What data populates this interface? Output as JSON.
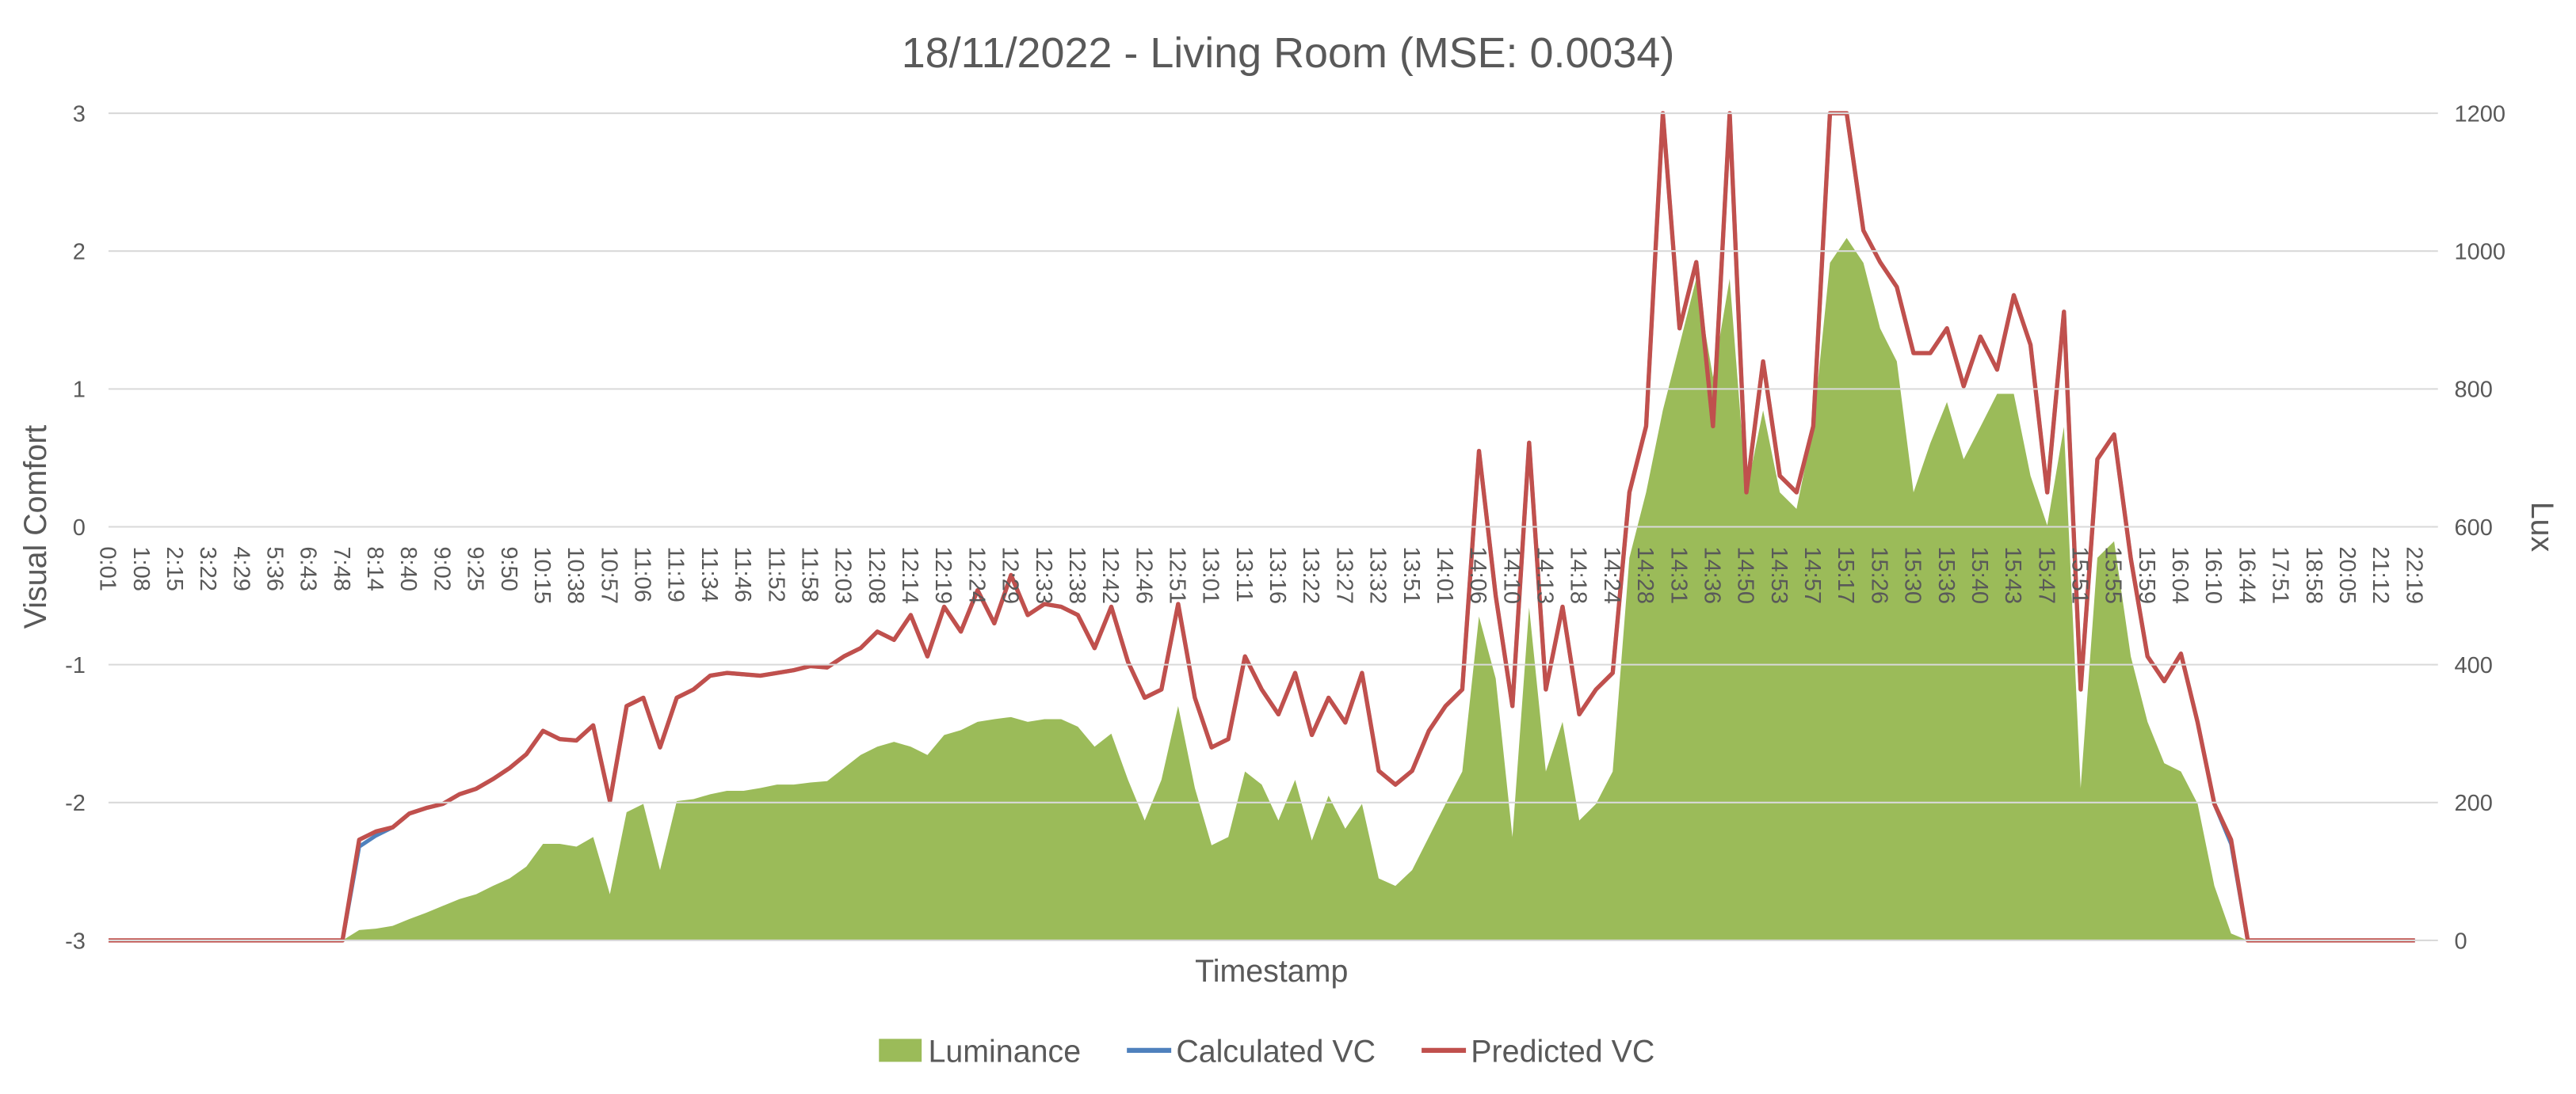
{
  "chart_data": {
    "type": "combo",
    "title": "18/11/2022 - Living Room (MSE: 0.0034)",
    "x_label": "Timestamp",
    "y_label": "Visual Comfort",
    "y2_label": "Lux",
    "legend": "bottom",
    "grid": true,
    "categories": [
      "0:01",
      null,
      "1:08",
      null,
      "2:15",
      null,
      "3:22",
      null,
      "4:29",
      null,
      "5:36",
      null,
      "6:43",
      null,
      "7:48",
      null,
      "8:14",
      null,
      "8:40",
      null,
      "9:02",
      null,
      "9:25",
      null,
      "9:50",
      null,
      "10:15",
      null,
      "10:38",
      null,
      "10:57",
      null,
      "11:06",
      null,
      "11:19",
      null,
      "11:34",
      null,
      "11:46",
      null,
      "11:52",
      null,
      "11:58",
      null,
      "12:03",
      null,
      "12:08",
      null,
      "12:14",
      null,
      "12:19",
      null,
      "12:24",
      null,
      "12:29",
      null,
      "12:33",
      null,
      "12:38",
      null,
      "12:42",
      null,
      "12:46",
      null,
      "12:51",
      null,
      "13:01",
      null,
      "13:11",
      null,
      "13:16",
      null,
      "13:22",
      null,
      "13:27",
      null,
      "13:32",
      null,
      "13:51",
      null,
      "14:01",
      null,
      "14:06",
      null,
      "14:10",
      null,
      "14:13",
      null,
      "14:18",
      null,
      "14:24",
      null,
      "14:28",
      null,
      "14:31",
      null,
      "14:36",
      null,
      "14:50",
      null,
      "14:53",
      null,
      "14:57",
      null,
      "15:17",
      null,
      "15:26",
      null,
      "15:30",
      null,
      "15:36",
      null,
      "15:40",
      null,
      "15:43",
      null,
      "15:47",
      null,
      "15:51",
      null,
      "15:55",
      null,
      "15:59",
      null,
      "16:04",
      null,
      "16:10",
      null,
      "16:44",
      null,
      "17:51",
      null,
      "18:58",
      null,
      "20:05",
      null,
      "21:12",
      null,
      "22:19"
    ],
    "ylim": [
      -3,
      3
    ],
    "yticks": [
      -3,
      -2,
      -1,
      0,
      1,
      2,
      3
    ],
    "y2lim": [
      0,
      1200
    ],
    "y2ticks": [
      0,
      200,
      400,
      600,
      800,
      1000,
      1200
    ],
    "series": [
      {
        "name": "Luminance",
        "type": "area",
        "axis": "y2",
        "color": "#9bbb59",
        "values": [
          0,
          0,
          0,
          0,
          0,
          0,
          0,
          0,
          0,
          0,
          0,
          0,
          0,
          0,
          0,
          15,
          17,
          21,
          31,
          40,
          50,
          60,
          67,
          79,
          90,
          107,
          140,
          140,
          136,
          150,
          67,
          186,
          198,
          102,
          202,
          205,
          212,
          217,
          217,
          221,
          226,
          226,
          229,
          231,
          250,
          269,
          281,
          288,
          281,
          269,
          298,
          305,
          317,
          321,
          324,
          317,
          321,
          321,
          310,
          281,
          300,
          233,
          174,
          233,
          340,
          221,
          138,
          150,
          245,
          226,
          174,
          233,
          145,
          210,
          162,
          198,
          90,
          79,
          102,
          150,
          198,
          245,
          470,
          380,
          150,
          483,
          245,
          317,
          174,
          198,
          245,
          555,
          650,
          769,
          864,
          960,
          817,
          960,
          650,
          769,
          650,
          626,
          745,
          983,
          1019,
          983,
          888,
          840,
          650,
          721,
          781,
          698,
          745,
          793,
          793,
          674,
          602,
          745,
          221,
          555,
          579,
          412,
          317,
          257,
          245,
          198,
          79,
          10,
          0,
          0,
          0,
          0,
          0,
          0,
          0,
          0,
          0,
          0,
          0
        ]
      },
      {
        "name": "Calculated VC",
        "type": "line",
        "color": "#4f81bd",
        "values": [
          -3,
          -3,
          -3,
          -3,
          -3,
          -3,
          -3,
          -3,
          -3,
          -3,
          -3,
          -3,
          -3,
          -3,
          -3,
          -2.32,
          -2.24,
          -2.18,
          -2.08,
          -2.04,
          -2.01,
          -1.94,
          -1.9,
          -1.83,
          -1.75,
          -1.65,
          -1.48,
          -1.54,
          -1.55,
          -1.44,
          -1.99,
          -1.3,
          -1.24,
          -1.6,
          -1.24,
          -1.18,
          -1.08,
          -1.06,
          -1.07,
          -1.08,
          -1.06,
          -1.04,
          -1.01,
          -1.02,
          -0.94,
          -0.88,
          -0.76,
          -0.82,
          -0.64,
          -0.94,
          -0.58,
          -0.76,
          -0.46,
          -0.7,
          -0.35,
          -0.64,
          -0.56,
          -0.58,
          -0.64,
          -0.88,
          -0.58,
          -0.98,
          -1.24,
          -1.18,
          -0.56,
          -1.24,
          -1.6,
          -1.54,
          -0.94,
          -1.18,
          -1.36,
          -1.06,
          -1.51,
          -1.24,
          -1.42,
          -1.06,
          -1.77,
          -1.87,
          -1.77,
          -1.48,
          -1.3,
          -1.18,
          0.55,
          -0.5,
          -1.3,
          0.61,
          -1.18,
          -0.58,
          -1.36,
          -1.18,
          -1.06,
          0.25,
          0.73,
          3,
          1.44,
          1.92,
          0.73,
          3,
          0.25,
          1.2,
          0.37,
          0.25,
          0.73,
          3,
          3,
          2.15,
          1.92,
          1.74,
          1.26,
          1.26,
          1.44,
          1.02,
          1.38,
          1.14,
          1.68,
          1.32,
          0.25,
          1.56,
          -1.18,
          0.49,
          0.67,
          -0.23,
          -0.94,
          -1.12,
          -0.92,
          -1.42,
          -2.01,
          -2.3,
          -3,
          -3,
          -3,
          -3,
          -3,
          -3,
          -3,
          -3,
          -3,
          -3,
          -3
        ]
      },
      {
        "name": "Predicted VC",
        "type": "line",
        "color": "#c0504d",
        "values": [
          -3,
          -3,
          -3,
          -3,
          -3,
          -3,
          -3,
          -3,
          -3,
          -3,
          -3,
          -3,
          -3,
          -3,
          -3,
          -2.27,
          -2.21,
          -2.18,
          -2.08,
          -2.04,
          -2.01,
          -1.94,
          -1.9,
          -1.83,
          -1.75,
          -1.65,
          -1.48,
          -1.54,
          -1.55,
          -1.44,
          -1.99,
          -1.3,
          -1.24,
          -1.6,
          -1.24,
          -1.18,
          -1.08,
          -1.06,
          -1.07,
          -1.08,
          -1.06,
          -1.04,
          -1.01,
          -1.02,
          -0.94,
          -0.88,
          -0.76,
          -0.82,
          -0.64,
          -0.94,
          -0.58,
          -0.76,
          -0.46,
          -0.7,
          -0.35,
          -0.64,
          -0.56,
          -0.58,
          -0.64,
          -0.88,
          -0.58,
          -0.98,
          -1.24,
          -1.18,
          -0.56,
          -1.24,
          -1.6,
          -1.54,
          -0.94,
          -1.18,
          -1.36,
          -1.06,
          -1.51,
          -1.24,
          -1.42,
          -1.06,
          -1.77,
          -1.87,
          -1.77,
          -1.48,
          -1.3,
          -1.18,
          0.55,
          -0.5,
          -1.3,
          0.61,
          -1.18,
          -0.58,
          -1.36,
          -1.18,
          -1.06,
          0.25,
          0.73,
          3,
          1.44,
          1.92,
          0.73,
          3,
          0.25,
          1.2,
          0.37,
          0.25,
          0.73,
          3,
          3,
          2.15,
          1.92,
          1.74,
          1.26,
          1.26,
          1.44,
          1.02,
          1.38,
          1.14,
          1.68,
          1.32,
          0.25,
          1.56,
          -1.18,
          0.49,
          0.67,
          -0.23,
          -0.94,
          -1.12,
          -0.92,
          -1.42,
          -2.01,
          -2.27,
          -3,
          -3,
          -3,
          -3,
          -3,
          -3,
          -3,
          -3,
          -3,
          -3,
          -3
        ]
      }
    ]
  }
}
